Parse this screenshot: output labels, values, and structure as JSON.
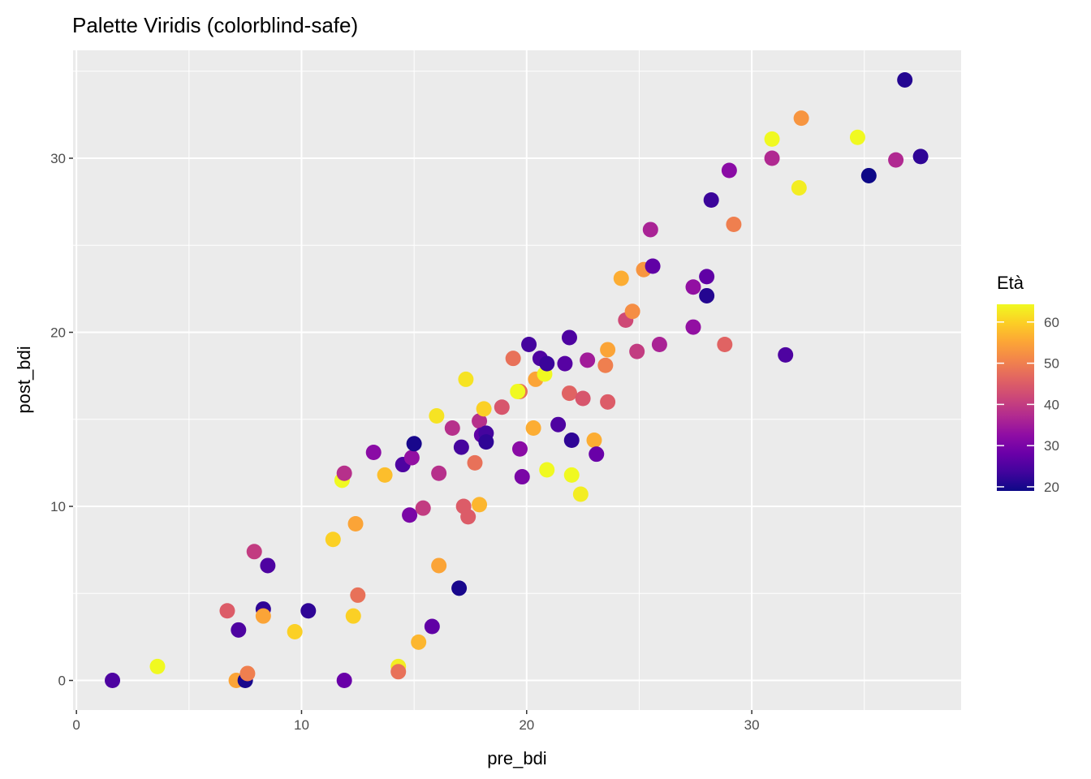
{
  "chart_data": {
    "type": "scatter",
    "title": "Palette Viridis (colorblind-safe)",
    "xlabel": "pre_bdi",
    "ylabel": "post_bdi",
    "xlim": [
      -0.15,
      39.3
    ],
    "ylim": [
      -1.7,
      36.2
    ],
    "xticks": [
      0,
      10,
      20,
      30
    ],
    "yticks": [
      0,
      10,
      20,
      30
    ],
    "xtick_labels": [
      "0",
      "10",
      "20",
      "30"
    ],
    "ytick_labels": [
      "0",
      "10",
      "20",
      "30"
    ],
    "grid": true,
    "legend": {
      "title": "Età",
      "placement": "right",
      "range": [
        19,
        64.3
      ],
      "ticks": [
        20,
        30,
        40,
        50,
        60
      ],
      "tick_labels": [
        "20",
        "30",
        "40",
        "50",
        "60"
      ]
    },
    "color_scale": [
      "#0d0887",
      "#41049d",
      "#6a00a8",
      "#8f0da4",
      "#b12a90",
      "#cc4778",
      "#e16462",
      "#f2844b",
      "#fca636",
      "#fcce25",
      "#f0f921"
    ],
    "points": [
      [
        1.6,
        0,
        25
      ],
      [
        3.6,
        0.8,
        65
      ],
      [
        6.7,
        4.0,
        45
      ],
      [
        7.2,
        2.9,
        25
      ],
      [
        7.1,
        0,
        55
      ],
      [
        7.5,
        0,
        20
      ],
      [
        7.6,
        0.4,
        50
      ],
      [
        7.9,
        7.4,
        40
      ],
      [
        8.5,
        6.6,
        25
      ],
      [
        8.3,
        4.1,
        22
      ],
      [
        8.3,
        3.7,
        55
      ],
      [
        9.7,
        2.8,
        60
      ],
      [
        10.3,
        4.0,
        22
      ],
      [
        11.4,
        8.1,
        60
      ],
      [
        11.8,
        11.5,
        65
      ],
      [
        11.9,
        11.9,
        38
      ],
      [
        11.9,
        0,
        28
      ],
      [
        12.4,
        9.0,
        55
      ],
      [
        12.5,
        4.9,
        48
      ],
      [
        12.3,
        3.7,
        60
      ],
      [
        13.2,
        13.1,
        32
      ],
      [
        13.7,
        11.8,
        58
      ],
      [
        14.3,
        0.8,
        63
      ],
      [
        14.3,
        0.5,
        48
      ],
      [
        14.5,
        12.4,
        25
      ],
      [
        14.9,
        12.8,
        33
      ],
      [
        14.8,
        9.5,
        30
      ],
      [
        15.0,
        13.6,
        20
      ],
      [
        15.2,
        2.2,
        57
      ],
      [
        15.4,
        9.9,
        40
      ],
      [
        15.8,
        3.1,
        27
      ],
      [
        16.0,
        15.2,
        62
      ],
      [
        16.1,
        11.9,
        38
      ],
      [
        16.1,
        6.6,
        55
      ],
      [
        16.7,
        14.5,
        38
      ],
      [
        17.0,
        5.3,
        20
      ],
      [
        17.1,
        13.4,
        24
      ],
      [
        17.2,
        10.0,
        45
      ],
      [
        17.3,
        17.3,
        62
      ],
      [
        17.4,
        9.4,
        45
      ],
      [
        17.7,
        12.5,
        48
      ],
      [
        17.9,
        14.9,
        38
      ],
      [
        17.9,
        10.1,
        57
      ],
      [
        18.0,
        14.1,
        27
      ],
      [
        18.1,
        15.6,
        60
      ],
      [
        18.2,
        14.2,
        24
      ],
      [
        18.2,
        13.7,
        22
      ],
      [
        18.9,
        15.7,
        44
      ],
      [
        19.4,
        18.5,
        48
      ],
      [
        19.7,
        16.6,
        48
      ],
      [
        19.6,
        16.6,
        65
      ],
      [
        19.7,
        13.3,
        32
      ],
      [
        19.8,
        11.7,
        30
      ],
      [
        20.1,
        19.3,
        24
      ],
      [
        20.3,
        14.5,
        56
      ],
      [
        20.4,
        17.3,
        55
      ],
      [
        20.6,
        18.5,
        25
      ],
      [
        20.8,
        17.6,
        65
      ],
      [
        20.9,
        18.2,
        23
      ],
      [
        20.9,
        12.1,
        65
      ],
      [
        21.4,
        14.7,
        25
      ],
      [
        21.7,
        18.2,
        26
      ],
      [
        21.9,
        19.7,
        25
      ],
      [
        21.9,
        16.5,
        46
      ],
      [
        22.0,
        11.8,
        65
      ],
      [
        22.0,
        13.8,
        22
      ],
      [
        22.4,
        10.7,
        63
      ],
      [
        22.5,
        16.2,
        44
      ],
      [
        22.7,
        18.4,
        35
      ],
      [
        23.0,
        13.8,
        56
      ],
      [
        23.1,
        13.0,
        28
      ],
      [
        23.5,
        18.1,
        50
      ],
      [
        23.6,
        19.0,
        55
      ],
      [
        23.6,
        16.0,
        45
      ],
      [
        24.2,
        23.1,
        56
      ],
      [
        24.4,
        20.7,
        42
      ],
      [
        24.7,
        21.2,
        52
      ],
      [
        24.9,
        18.9,
        40
      ],
      [
        25.2,
        23.6,
        53
      ],
      [
        25.5,
        25.9,
        36
      ],
      [
        25.6,
        23.8,
        27
      ],
      [
        25.9,
        19.3,
        36
      ],
      [
        27.4,
        22.6,
        33
      ],
      [
        27.4,
        20.3,
        33
      ],
      [
        28.0,
        22.1,
        21
      ],
      [
        28.0,
        23.2,
        27
      ],
      [
        28.2,
        27.6,
        23
      ],
      [
        28.8,
        19.3,
        46
      ],
      [
        29.0,
        29.3,
        32
      ],
      [
        29.2,
        26.2,
        50
      ],
      [
        30.9,
        31.1,
        65
      ],
      [
        30.9,
        30.0,
        37
      ],
      [
        31.5,
        18.7,
        25
      ],
      [
        32.1,
        28.3,
        63
      ],
      [
        32.2,
        32.3,
        53
      ],
      [
        34.7,
        31.2,
        65
      ],
      [
        35.2,
        29.0,
        19
      ],
      [
        36.4,
        29.9,
        37
      ],
      [
        36.8,
        34.5,
        21
      ],
      [
        37.5,
        30.1,
        22
      ]
    ]
  }
}
